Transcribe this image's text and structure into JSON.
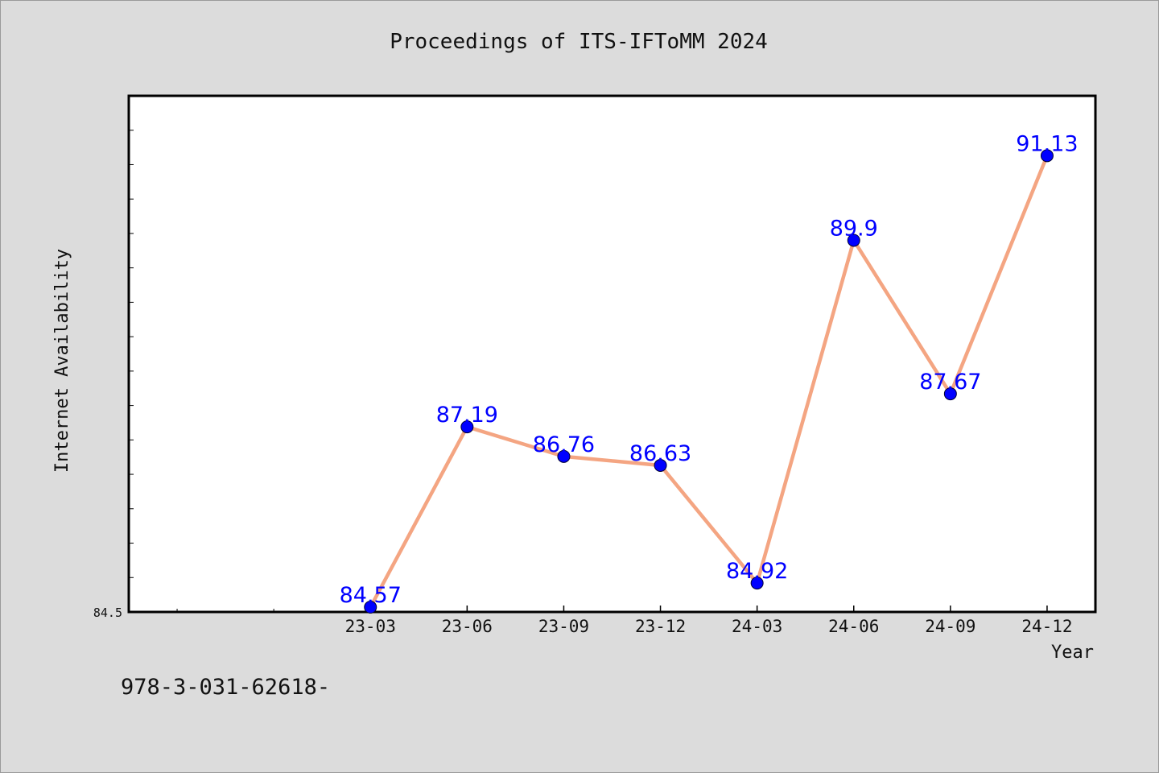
{
  "chart_data": {
    "type": "line",
    "title": "Proceedings of ITS-IFToMM 2024",
    "xlabel": "Year",
    "ylabel": "Internet Availability",
    "categories": [
      "23-03",
      "23-06",
      "23-09",
      "23-12",
      "24-03",
      "24-06",
      "24-09",
      "24-12"
    ],
    "values": [
      84.57,
      87.19,
      86.76,
      86.63,
      84.92,
      89.9,
      87.67,
      91.13
    ],
    "data_labels": [
      "84.57",
      "87.19",
      "86.76",
      "86.63",
      "84.92",
      "89.9",
      "87.67",
      "91.13"
    ],
    "y_tick_label": "84.5",
    "ylim": [
      84.5,
      92.0
    ],
    "grid": false,
    "line_color": "#f4a582",
    "marker_color": "#0000ff",
    "label_color": "#0000ff"
  },
  "footer_text": "978-3-031-62618-"
}
